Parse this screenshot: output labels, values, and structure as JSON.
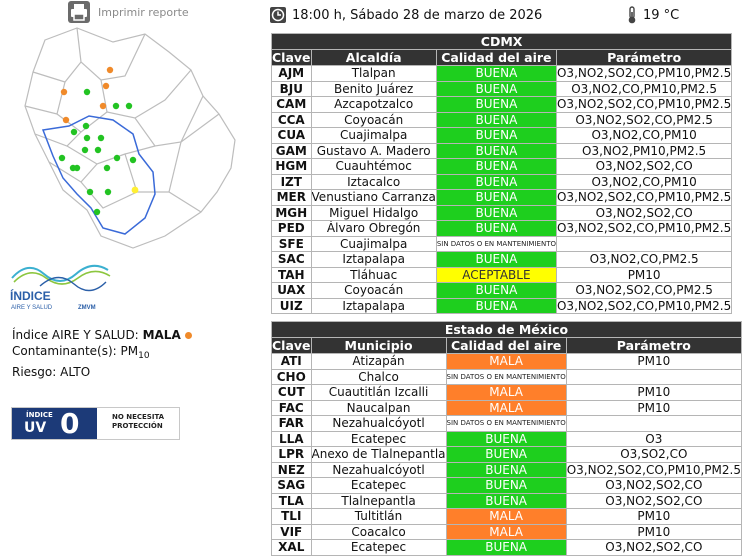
{
  "header": {
    "print_label": "Imprimir reporte",
    "datetime": "18:00 h, Sábado 28 de marzo de 2026",
    "temperature": "19 °C"
  },
  "logo": {
    "title": "ÍNDICE",
    "subtitle": "AIRE Y SALUD",
    "tag": "ZMVM"
  },
  "summary": {
    "index_label": "Índice AIRE Y SALUD:",
    "index_value": "MALA",
    "pollutant_label": "Contaminante(s):",
    "pollutant_main": "PM",
    "pollutant_sub": "10",
    "risk_label": "Riesgo:",
    "risk_value": "ALTO"
  },
  "uv": {
    "indice": "ÍNDICE",
    "uv": "UV",
    "value": "0",
    "message_line1": "NO NECESITA",
    "message_line2": "PROTECCIÓN"
  },
  "colors": {
    "buena": "#1ecf1e",
    "mala": "#ff7f2a",
    "aceptable": "#ffff00"
  },
  "cdmx": {
    "title": "CDMX",
    "headers": [
      "Clave",
      "Alcaldía",
      "Calidad del aire",
      "Parámetro"
    ],
    "rows": [
      [
        "AJM",
        "Tlalpan",
        "BUENA",
        "O3,NO2,SO2,CO,PM10,PM2.5"
      ],
      [
        "BJU",
        "Benito Juárez",
        "BUENA",
        "O3,NO2,CO,PM10,PM2.5"
      ],
      [
        "CAM",
        "Azcapotzalco",
        "BUENA",
        "O3,NO2,SO2,CO,PM10,PM2.5"
      ],
      [
        "CCA",
        "Coyoacán",
        "BUENA",
        "O3,NO2,SO2,CO,PM2.5"
      ],
      [
        "CUA",
        "Cuajimalpa",
        "BUENA",
        "O3,NO2,CO,PM10"
      ],
      [
        "GAM",
        "Gustavo A. Madero",
        "BUENA",
        "O3,NO2,PM10,PM2.5"
      ],
      [
        "HGM",
        "Cuauhtémoc",
        "BUENA",
        "O3,NO2,SO2,CO"
      ],
      [
        "IZT",
        "Iztacalco",
        "BUENA",
        "O3,NO2,CO,PM10"
      ],
      [
        "MER",
        "Venustiano Carranza",
        "BUENA",
        "O3,NO2,SO2,CO,PM10,PM2.5"
      ],
      [
        "MGH",
        "Miguel Hidalgo",
        "BUENA",
        "O3,NO2,SO2,CO"
      ],
      [
        "PED",
        "Álvaro Obregón",
        "BUENA",
        "O3,NO2,SO2,CO,PM10,PM2.5"
      ],
      [
        "SFE",
        "Cuajimalpa",
        "SIN DATOS O EN MANTENIMIENTO",
        ""
      ],
      [
        "SAC",
        "Iztapalapa",
        "BUENA",
        "O3,NO2,CO,PM2.5"
      ],
      [
        "TAH",
        "Tláhuac",
        "ACEPTABLE",
        "PM10"
      ],
      [
        "UAX",
        "Coyoacán",
        "BUENA",
        "O3,NO2,SO2,CO,PM2.5"
      ],
      [
        "UIZ",
        "Iztapalapa",
        "BUENA",
        "O3,NO2,SO2,CO,PM10,PM2.5"
      ]
    ]
  },
  "edomex": {
    "title": "Estado de México",
    "headers": [
      "Clave",
      "Municipio",
      "Calidad del aire",
      "Parámetro"
    ],
    "rows": [
      [
        "ATI",
        "Atizapán",
        "MALA",
        "PM10"
      ],
      [
        "CHO",
        "Chalco",
        "SIN DATOS O EN MANTENIMIENTO",
        ""
      ],
      [
        "CUT",
        "Cuautitlán Izcalli",
        "MALA",
        "PM10"
      ],
      [
        "FAC",
        "Naucalpan",
        "MALA",
        "PM10"
      ],
      [
        "FAR",
        "Nezahualcóyotl",
        "SIN DATOS O EN MANTENIMIENTO",
        ""
      ],
      [
        "LLA",
        "Ecatepec",
        "BUENA",
        "O3"
      ],
      [
        "LPR",
        "Anexo de Tlalnepantla",
        "BUENA",
        "O3,SO2,CO"
      ],
      [
        "NEZ",
        "Nezahualcóyotl",
        "BUENA",
        "O3,NO2,SO2,CO,PM10,PM2.5"
      ],
      [
        "SAG",
        "Ecatepec",
        "BUENA",
        "O3,NO2,SO2,CO"
      ],
      [
        "TLA",
        "Tlalnepantla",
        "BUENA",
        "O3,NO2,SO2,CO"
      ],
      [
        "TLI",
        "Tultitlán",
        "MALA",
        "PM10"
      ],
      [
        "VIF",
        "Coacalco",
        "MALA",
        "PM10"
      ],
      [
        "XAL",
        "Ecatepec",
        "BUENA",
        "O3,NO2,SO2,CO"
      ]
    ]
  }
}
